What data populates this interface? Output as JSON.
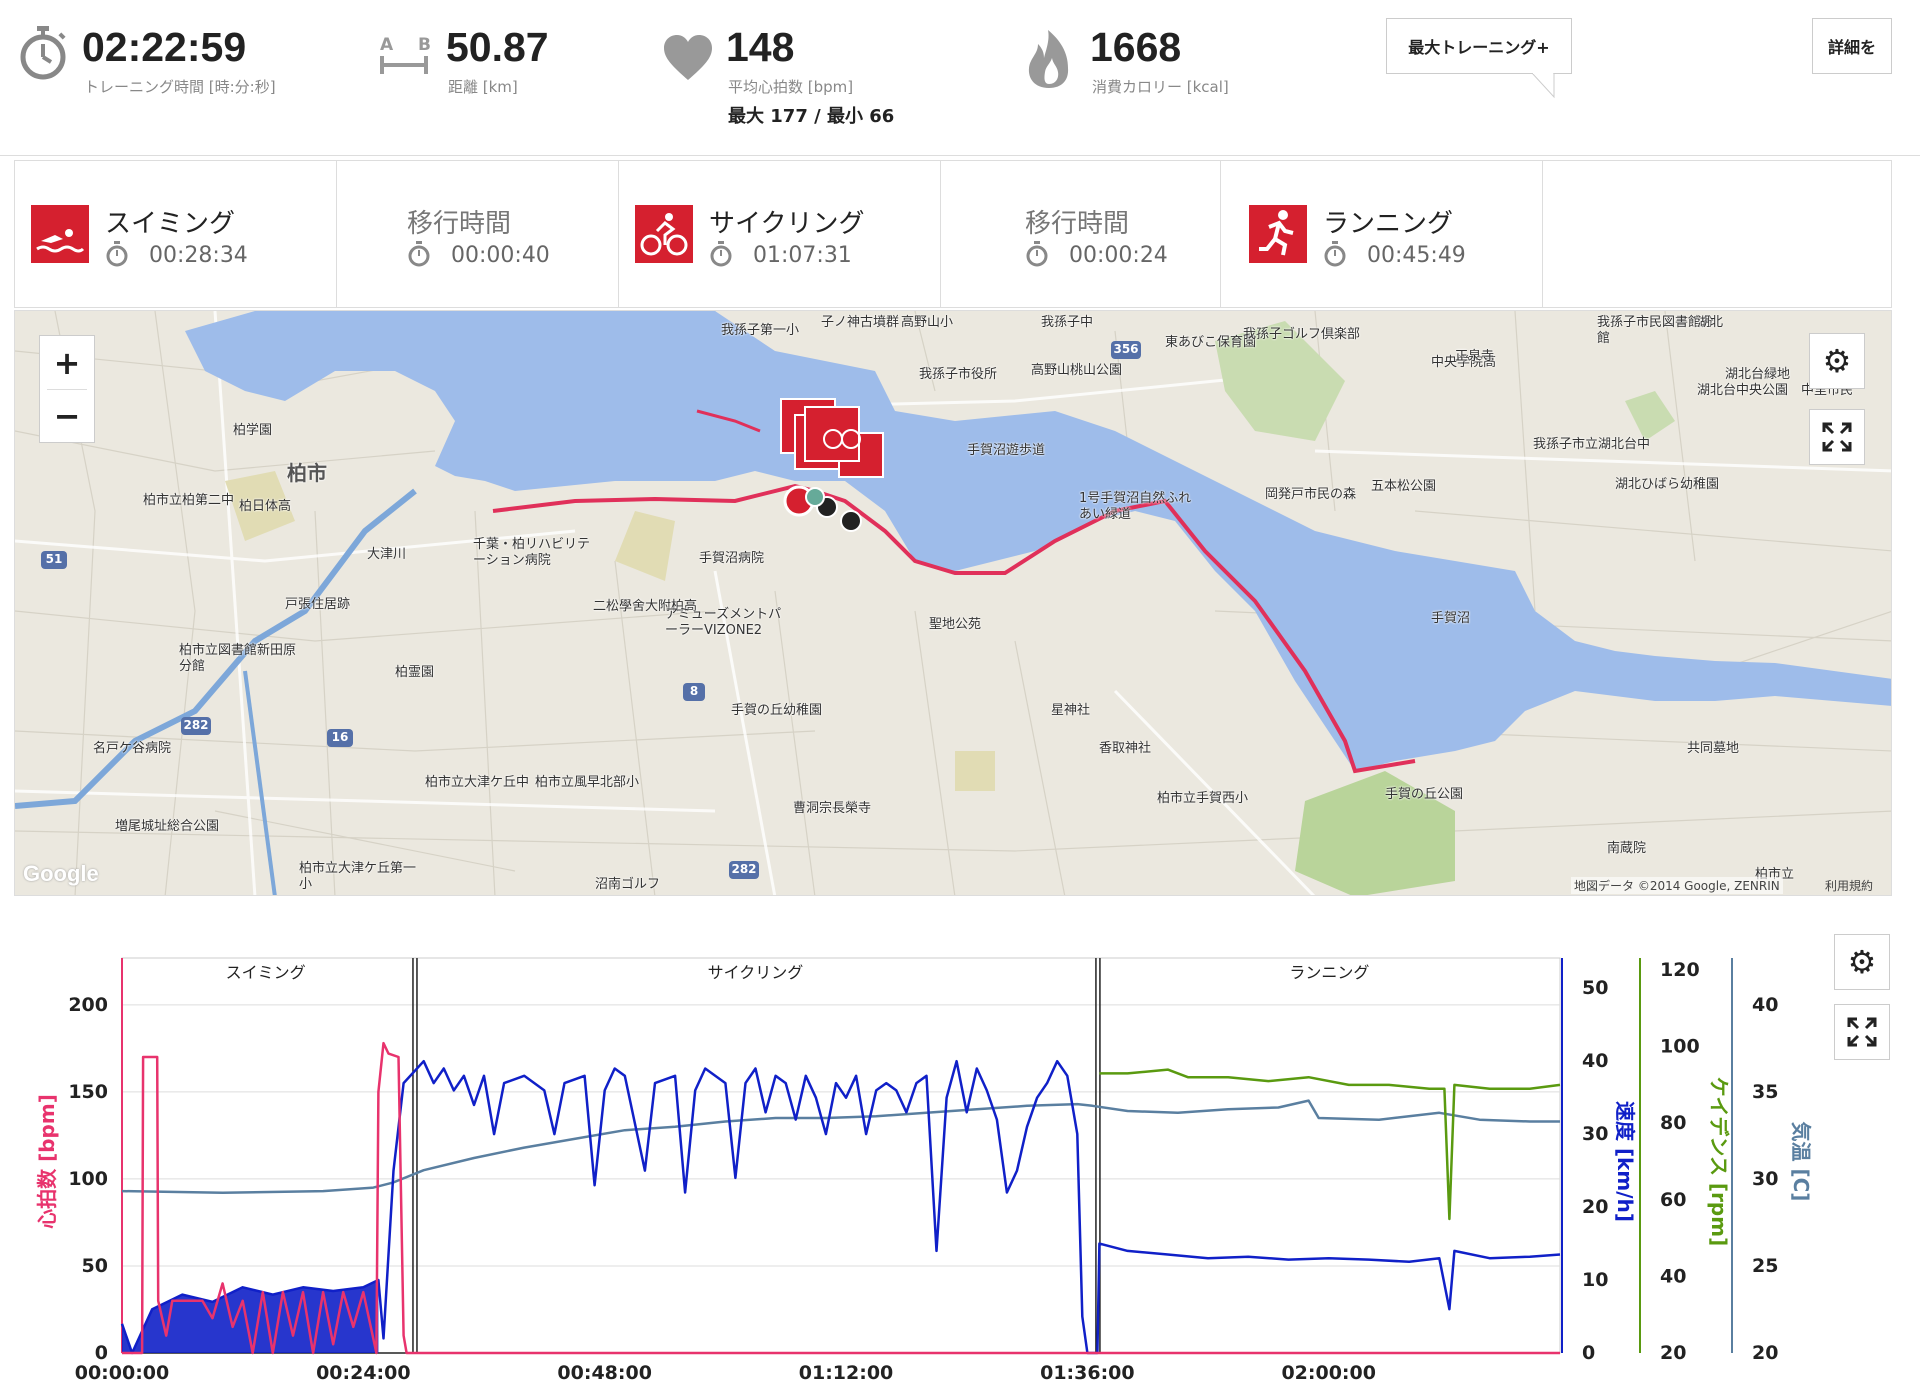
{
  "summary": {
    "time": {
      "value": "02:22:59",
      "label": "トレーニング時間 [時:分:秒]",
      "icon": "stopwatch-icon"
    },
    "distance": {
      "value": "50.87",
      "label": "距離 [km]",
      "icon": "distance-ab-icon",
      "a": "A",
      "b": "B"
    },
    "heart_rate": {
      "value": "148",
      "label": "平均心拍数 [bpm]",
      "minmax": "最大 177 / 最小 66",
      "icon": "heart-icon"
    },
    "calories": {
      "value": "1668",
      "label": "消費カロリー [kcal]",
      "icon": "flame-icon"
    },
    "max_training_button": "最大トレーニング+",
    "details_button": "詳細を"
  },
  "segments": [
    {
      "name": "スイミング",
      "time": "00:28:34",
      "icon": "swimming-icon"
    },
    {
      "name": "移行時間",
      "time": "00:00:40",
      "icon": ""
    },
    {
      "name": "サイクリング",
      "time": "01:07:31",
      "icon": "cycling-icon"
    },
    {
      "name": "移行時間",
      "time": "00:00:24",
      "icon": ""
    },
    {
      "name": "ランニング",
      "time": "00:45:49",
      "icon": "running-icon"
    }
  ],
  "map": {
    "zoom_in": "+",
    "zoom_out": "−",
    "attribution": "地図データ ©2014 Google, ZENRIN",
    "terms": "利用規約",
    "google_logo": "Google",
    "labels": [
      "柏市",
      "柏学園",
      "柏市立柏第二中",
      "柏日体高",
      "大津川",
      "千葉・柏リハビリテーション病院",
      "手賀沼病院",
      "二松學舍大附柏高",
      "アミューズメントパーラーVIZONE2",
      "戸張住居跡",
      "柏市立図書館新田原分館",
      "柏霊園",
      "名戸ケ谷病院",
      "増尾城址総合公園",
      "柏市立大津ケ丘中",
      "柏市立風早北部小",
      "手賀の丘幼稚園",
      "曹洞宗長榮寺",
      "柏市立大津ケ丘第一小",
      "沼南ゴルフ",
      "聖地公苑",
      "星神社",
      "香取神社",
      "柏市立手賀西小",
      "手賀の丘公園",
      "共同墓地",
      "南蔵院",
      "柏市立",
      "手賀沼",
      "1号手賀沼自然ふれあい緑道",
      "手賀沼遊歩道",
      "我孫子市役所",
      "高野山桃山公園",
      "我孫子第一小",
      "子ノ神古墳群",
      "高野山小",
      "我孫子中",
      "東あびこ保育園",
      "我孫子ゴルフ倶楽部",
      "岡発戸市民の森",
      "五本松公園",
      "中央学院高",
      "正泉寺",
      "我孫子市民図書館分館",
      "湖北",
      "湖北台緑地",
      "湖北台中央公園",
      "我孫子市立湖北台中",
      "湖北ひばら幼稚園",
      "中里市民"
    ],
    "road_numbers": [
      "51",
      "282",
      "16",
      "8",
      "282",
      "356"
    ]
  },
  "chart_data": {
    "type": "line",
    "title": "",
    "sections": [
      {
        "label": "スイミング",
        "start": "00:00:00",
        "end": "00:28:34"
      },
      {
        "label": "サイクリング",
        "start": "00:29:14",
        "end": "01:36:45"
      },
      {
        "label": "ランニング",
        "start": "01:37:09",
        "end": "02:22:59"
      }
    ],
    "x_ticks": [
      "00:00:00",
      "00:24:00",
      "00:48:00",
      "01:12:00",
      "01:36:00",
      "02:00:00"
    ],
    "x_range_minutes": [
      0,
      143
    ],
    "axes": [
      {
        "id": "hr",
        "label": "心拍数 [bpm]",
        "color": "#e8336d",
        "range": [
          0,
          220
        ],
        "ticks": [
          0,
          50,
          100,
          150,
          200
        ],
        "side": "left"
      },
      {
        "id": "speed",
        "label": "速度 [km/h]",
        "color": "#1020c8",
        "range": [
          0,
          52.5
        ],
        "ticks": [
          0,
          10,
          20,
          30,
          40,
          50
        ],
        "side": "right"
      },
      {
        "id": "cadence",
        "label": "ケイデンス [rpm]",
        "color": "#5a9a10",
        "range": [
          20,
          120
        ],
        "ticks": [
          20,
          40,
          60,
          80,
          100,
          120
        ],
        "side": "right"
      },
      {
        "id": "temp",
        "label": "気温 [C]",
        "color": "#5a7fa0",
        "range": [
          20,
          42
        ],
        "ticks": [
          20,
          25,
          30,
          35,
          40
        ],
        "side": "right"
      }
    ],
    "series": [
      {
        "name": "心拍数",
        "axis": "hr",
        "color": "#e8336d",
        "points": [
          [
            0,
            0
          ],
          [
            2,
            0
          ],
          [
            2.1,
            170
          ],
          [
            3.5,
            170
          ],
          [
            3.6,
            30
          ],
          [
            4.4,
            10
          ],
          [
            5,
            30
          ],
          [
            8,
            30
          ],
          [
            9,
            20
          ],
          [
            10,
            40
          ],
          [
            11,
            15
          ],
          [
            12,
            30
          ],
          [
            13,
            0
          ],
          [
            14,
            35
          ],
          [
            15,
            0
          ],
          [
            16,
            35
          ],
          [
            17,
            10
          ],
          [
            18,
            35
          ],
          [
            19,
            0
          ],
          [
            20,
            35
          ],
          [
            21,
            5
          ],
          [
            22,
            35
          ],
          [
            23,
            15
          ],
          [
            24,
            35
          ],
          [
            25.3,
            0
          ],
          [
            25.5,
            150
          ],
          [
            26,
            178
          ],
          [
            26.5,
            172
          ],
          [
            27.5,
            170
          ],
          [
            28,
            10
          ],
          [
            28.3,
            0
          ],
          [
            143,
            0
          ]
        ]
      },
      {
        "name": "速度",
        "axis": "speed",
        "color": "#1020c8",
        "points": [
          [
            0,
            4
          ],
          [
            1,
            0
          ],
          [
            3,
            6
          ],
          [
            6,
            8
          ],
          [
            9,
            7
          ],
          [
            12,
            9
          ],
          [
            15,
            8
          ],
          [
            18,
            9
          ],
          [
            21,
            8.5
          ],
          [
            24,
            9
          ],
          [
            25.5,
            10
          ],
          [
            26,
            2
          ],
          [
            27,
            25
          ],
          [
            28,
            37
          ],
          [
            30,
            40
          ],
          [
            31,
            37
          ],
          [
            32,
            39
          ],
          [
            33,
            36
          ],
          [
            34,
            38
          ],
          [
            35,
            34
          ],
          [
            36,
            38
          ],
          [
            37,
            30
          ],
          [
            38,
            37
          ],
          [
            40,
            38
          ],
          [
            42,
            36
          ],
          [
            43,
            30
          ],
          [
            44,
            37
          ],
          [
            46,
            38
          ],
          [
            47,
            23
          ],
          [
            48,
            36
          ],
          [
            49,
            39
          ],
          [
            50,
            38
          ],
          [
            52,
            25
          ],
          [
            53,
            37
          ],
          [
            55,
            38
          ],
          [
            56,
            22
          ],
          [
            57,
            36
          ],
          [
            58,
            39
          ],
          [
            60,
            37
          ],
          [
            61,
            24
          ],
          [
            62,
            37
          ],
          [
            63,
            39
          ],
          [
            64,
            33
          ],
          [
            65,
            38
          ],
          [
            66,
            37
          ],
          [
            67,
            32
          ],
          [
            68,
            38
          ],
          [
            69,
            35
          ],
          [
            70,
            30
          ],
          [
            71,
            37
          ],
          [
            72,
            35
          ],
          [
            73,
            38
          ],
          [
            74,
            30
          ],
          [
            75,
            36
          ],
          [
            76,
            37
          ],
          [
            77,
            36
          ],
          [
            78,
            33
          ],
          [
            79,
            37
          ],
          [
            80,
            38
          ],
          [
            81,
            14
          ],
          [
            82,
            35
          ],
          [
            83,
            40
          ],
          [
            84,
            33
          ],
          [
            85,
            39
          ],
          [
            86,
            36
          ],
          [
            87,
            32
          ],
          [
            88,
            22
          ],
          [
            89,
            25
          ],
          [
            90,
            31
          ],
          [
            91,
            35
          ],
          [
            92,
            37
          ],
          [
            93,
            40
          ],
          [
            94,
            38
          ],
          [
            95,
            30
          ],
          [
            95.5,
            5
          ],
          [
            96,
            0
          ],
          [
            97,
            0
          ],
          [
            97.2,
            15
          ],
          [
            100,
            14
          ],
          [
            104,
            13.5
          ],
          [
            108,
            13
          ],
          [
            112,
            13.2
          ],
          [
            116,
            12.8
          ],
          [
            120,
            13
          ],
          [
            124,
            12.8
          ],
          [
            128,
            12.5
          ],
          [
            131,
            13
          ],
          [
            132,
            6
          ],
          [
            132.5,
            14
          ],
          [
            136,
            13
          ],
          [
            140,
            13.2
          ],
          [
            143,
            13.5
          ]
        ]
      },
      {
        "name": "ケイデンス",
        "axis": "cadence",
        "color": "#5a9a10",
        "points": [
          [
            97.2,
            93
          ],
          [
            100,
            93
          ],
          [
            104,
            94
          ],
          [
            106,
            92
          ],
          [
            110,
            92
          ],
          [
            114,
            91
          ],
          [
            118,
            92
          ],
          [
            122,
            90
          ],
          [
            126,
            90
          ],
          [
            130,
            89
          ],
          [
            131.5,
            89
          ],
          [
            132,
            55
          ],
          [
            132.5,
            90
          ],
          [
            136,
            89
          ],
          [
            140,
            89
          ],
          [
            143,
            90
          ]
        ]
      },
      {
        "name": "気温",
        "axis": "temp",
        "color": "#5a7fa0",
        "points": [
          [
            0,
            29.3
          ],
          [
            10,
            29.2
          ],
          [
            20,
            29.3
          ],
          [
            25,
            29.5
          ],
          [
            27,
            29.8
          ],
          [
            30,
            30.5
          ],
          [
            35,
            31.2
          ],
          [
            40,
            31.8
          ],
          [
            45,
            32.3
          ],
          [
            50,
            32.8
          ],
          [
            55,
            33
          ],
          [
            60,
            33.3
          ],
          [
            65,
            33.5
          ],
          [
            70,
            33.5
          ],
          [
            75,
            33.6
          ],
          [
            80,
            33.8
          ],
          [
            85,
            34
          ],
          [
            90,
            34.2
          ],
          [
            95,
            34.3
          ],
          [
            96.5,
            34.2
          ],
          [
            100,
            33.9
          ],
          [
            105,
            33.8
          ],
          [
            110,
            34
          ],
          [
            115,
            34.1
          ],
          [
            118,
            34.5
          ],
          [
            119,
            33.5
          ],
          [
            125,
            33.4
          ],
          [
            131,
            33.8
          ],
          [
            135,
            33.4
          ],
          [
            140,
            33.3
          ],
          [
            143,
            33.3
          ]
        ]
      }
    ]
  }
}
